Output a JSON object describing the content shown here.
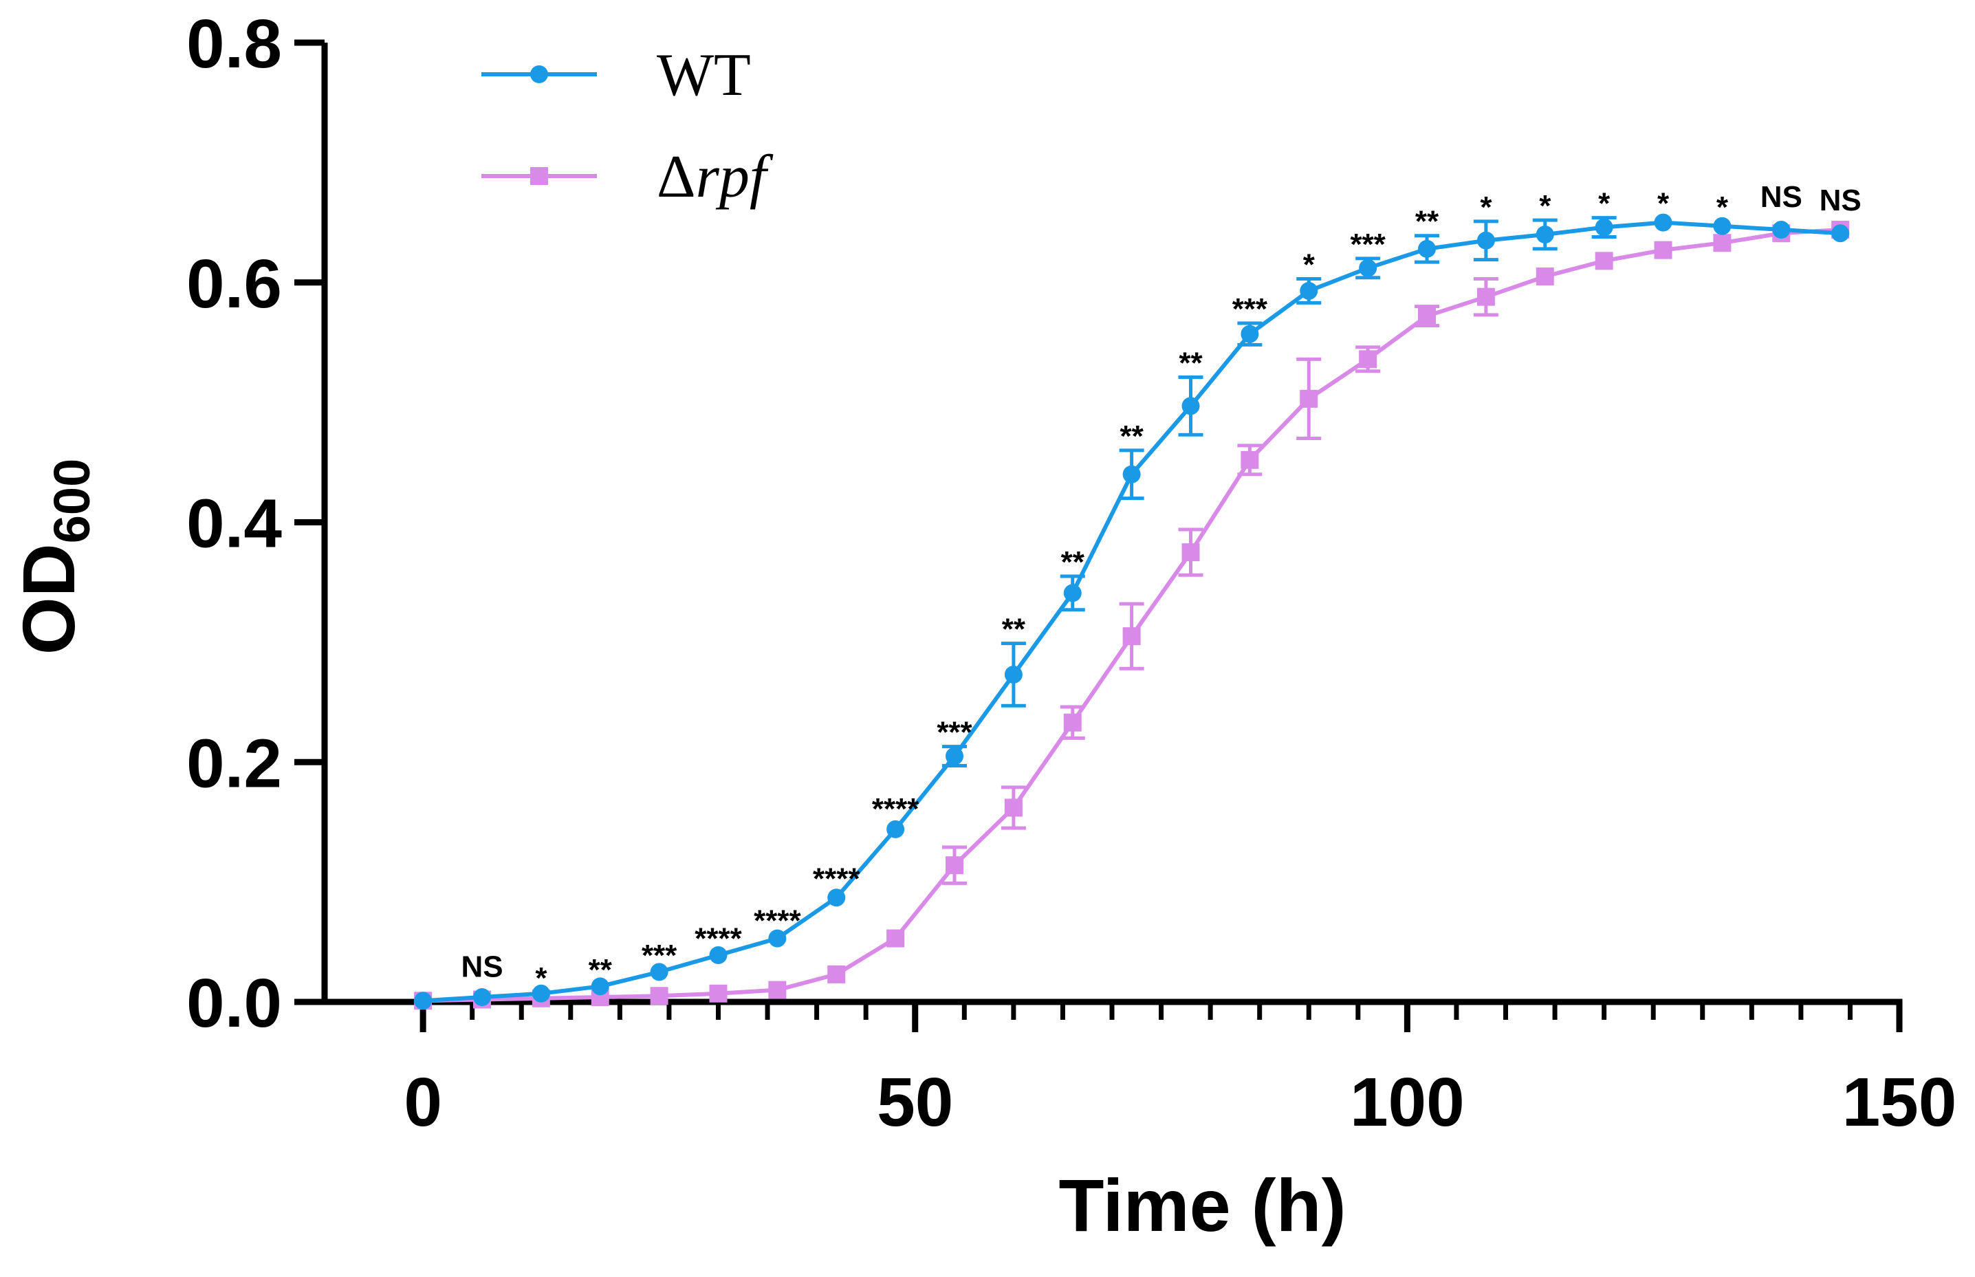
{
  "chart_data": {
    "type": "line",
    "title": "",
    "xlabel": "Time (h)",
    "ylabel_main": "OD",
    "ylabel_sub": "600",
    "xlim": [
      -10,
      150
    ],
    "ylim": [
      0,
      0.8
    ],
    "x_ticks": [
      0,
      50,
      100,
      150
    ],
    "x_tick_labels": [
      "0",
      "50",
      "100",
      "150"
    ],
    "x_minor_step": 5,
    "y_ticks": [
      0.0,
      0.2,
      0.4,
      0.6,
      0.8
    ],
    "y_tick_labels": [
      "0.0",
      "0.2",
      "0.4",
      "0.6",
      "0.8"
    ],
    "grid": false,
    "legend_position": "top-left",
    "x": [
      0,
      6,
      12,
      18,
      24,
      30,
      36,
      42,
      48,
      54,
      60,
      66,
      72,
      78,
      84,
      90,
      96,
      102,
      108,
      114,
      120,
      126,
      132,
      138,
      144
    ],
    "series": [
      {
        "name": "WT",
        "color": "#1a9ae6",
        "marker": "circle",
        "values": [
          0.001,
          0.004,
          0.007,
          0.013,
          0.025,
          0.039,
          0.053,
          0.087,
          0.144,
          0.205,
          0.273,
          0.341,
          0.44,
          0.497,
          0.557,
          0.593,
          0.612,
          0.628,
          0.635,
          0.64,
          0.646,
          0.65,
          0.647,
          0.644,
          0.641
        ],
        "errors": [
          0.001,
          0.001,
          0.001,
          0.002,
          0.002,
          0.002,
          0.003,
          0.004,
          0.005,
          0.008,
          0.026,
          0.014,
          0.02,
          0.024,
          0.009,
          0.01,
          0.008,
          0.011,
          0.016,
          0.012,
          0.008,
          0.004,
          0.004,
          0.003,
          0.003
        ]
      },
      {
        "name": "Δrpf",
        "name_prefix": "Δ",
        "name_italic": "rpf",
        "color": "#d98ae8",
        "marker": "square",
        "values": [
          0.001,
          0.002,
          0.003,
          0.004,
          0.005,
          0.007,
          0.01,
          0.023,
          0.053,
          0.114,
          0.162,
          0.233,
          0.305,
          0.375,
          0.452,
          0.503,
          0.536,
          0.572,
          0.588,
          0.605,
          0.618,
          0.627,
          0.633,
          0.641,
          0.644
        ],
        "errors": [
          0.001,
          0.001,
          0.001,
          0.001,
          0.001,
          0.001,
          0.002,
          0.003,
          0.004,
          0.015,
          0.017,
          0.013,
          0.027,
          0.019,
          0.012,
          0.033,
          0.01,
          0.008,
          0.015,
          0.005,
          0.005,
          0.005,
          0.005,
          0.005,
          0.005
        ]
      }
    ],
    "significance": [
      {
        "x": 6,
        "label": "NS"
      },
      {
        "x": 12,
        "label": "*"
      },
      {
        "x": 18,
        "label": "**"
      },
      {
        "x": 24,
        "label": "***"
      },
      {
        "x": 30,
        "label": "****"
      },
      {
        "x": 36,
        "label": "****"
      },
      {
        "x": 42,
        "label": "****"
      },
      {
        "x": 48,
        "label": "****"
      },
      {
        "x": 54,
        "label": "***"
      },
      {
        "x": 60,
        "label": "**"
      },
      {
        "x": 66,
        "label": "**"
      },
      {
        "x": 72,
        "label": "**"
      },
      {
        "x": 78,
        "label": "**"
      },
      {
        "x": 84,
        "label": "***"
      },
      {
        "x": 90,
        "label": "*"
      },
      {
        "x": 96,
        "label": "***"
      },
      {
        "x": 102,
        "label": "**"
      },
      {
        "x": 108,
        "label": "*"
      },
      {
        "x": 114,
        "label": "*"
      },
      {
        "x": 120,
        "label": "*"
      },
      {
        "x": 126,
        "label": "*"
      },
      {
        "x": 132,
        "label": "*"
      },
      {
        "x": 138,
        "label": "NS"
      },
      {
        "x": 144,
        "label": "NS"
      }
    ]
  }
}
